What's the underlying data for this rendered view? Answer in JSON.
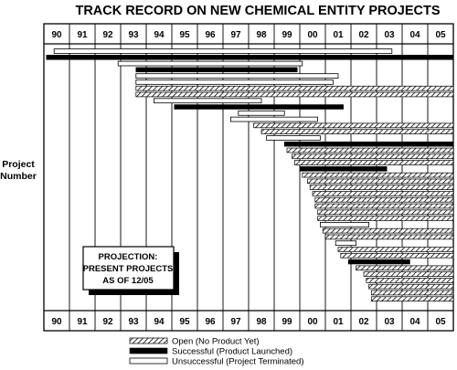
{
  "chart_data": {
    "type": "bar",
    "orientation": "horizontal",
    "title": "TRACK RECORD ON NEW CHEMICAL ENTITY PROJECTS",
    "ylabel": "Project Number",
    "x_ticks": [
      "90",
      "91",
      "92",
      "93",
      "94",
      "95",
      "96",
      "97",
      "98",
      "99",
      "00",
      "01",
      "02",
      "03",
      "04",
      "05"
    ],
    "x_range": [
      1990,
      2006
    ],
    "grid": true,
    "annotation": [
      "PROJECTION:",
      "PRESENT PROJECTS",
      "AS OF 12/05"
    ],
    "legend_position": "bottom",
    "legend": [
      {
        "status": "open",
        "label": "Open (No Product Yet)"
      },
      {
        "status": "successful",
        "label": "Successful (Product Launched)"
      },
      {
        "status": "unsuccessful",
        "label": "Unsuccessful (Project Terminated)"
      }
    ],
    "colors": {
      "open_hatch": "#000000",
      "successful": "#000000",
      "unsuccessful_fill": "#ffffff",
      "grid": "#000000"
    },
    "series": [
      {
        "status": "unsuccessful",
        "start": 1990.4,
        "end": 2003.6
      },
      {
        "status": "successful",
        "start": 1990.1,
        "end": 2006.0
      },
      {
        "status": "unsuccessful",
        "start": 1992.9,
        "end": 2000.1
      },
      {
        "status": "successful",
        "start": 1993.6,
        "end": 1999.9
      },
      {
        "status": "unsuccessful",
        "start": 1993.6,
        "end": 2001.5
      },
      {
        "status": "unsuccessful",
        "start": 1993.6,
        "end": 2001.3
      },
      {
        "status": "open",
        "start": 1993.6,
        "end": 2006.0
      },
      {
        "status": "open",
        "start": 1993.6,
        "end": 2006.0
      },
      {
        "status": "unsuccessful",
        "start": 1994.3,
        "end": 1998.5
      },
      {
        "status": "successful",
        "start": 1995.1,
        "end": 2001.7
      },
      {
        "status": "unsuccessful",
        "start": 1997.6,
        "end": 1999.4
      },
      {
        "status": "unsuccessful",
        "start": 1997.3,
        "end": 2000.7
      },
      {
        "status": "open",
        "start": 1998.2,
        "end": 2006.0
      },
      {
        "status": "open",
        "start": 1998.5,
        "end": 2006.0
      },
      {
        "status": "unsuccessful",
        "start": 1998.7,
        "end": 2000.8
      },
      {
        "status": "successful",
        "start": 1999.4,
        "end": 2006.0
      },
      {
        "status": "open",
        "start": 1999.5,
        "end": 2006.0
      },
      {
        "status": "open",
        "start": 1999.7,
        "end": 2006.0
      },
      {
        "status": "open",
        "start": 1999.8,
        "end": 2006.0
      },
      {
        "status": "successful",
        "start": 2000.0,
        "end": 2003.4
      },
      {
        "status": "open",
        "start": 2000.1,
        "end": 2006.0
      },
      {
        "status": "open",
        "start": 2000.3,
        "end": 2006.0
      },
      {
        "status": "open",
        "start": 2000.4,
        "end": 2006.0
      },
      {
        "status": "open",
        "start": 2000.5,
        "end": 2006.0
      },
      {
        "status": "open",
        "start": 2000.6,
        "end": 2006.0
      },
      {
        "status": "open",
        "start": 2000.6,
        "end": 2006.0
      },
      {
        "status": "open",
        "start": 2000.7,
        "end": 2006.0
      },
      {
        "status": "open",
        "start": 2000.7,
        "end": 2006.0
      },
      {
        "status": "unsuccessful",
        "start": 2000.8,
        "end": 2002.7
      },
      {
        "status": "open",
        "start": 2000.9,
        "end": 2006.0
      },
      {
        "status": "open",
        "start": 2001.0,
        "end": 2006.0
      },
      {
        "status": "unsuccessful",
        "start": 2001.4,
        "end": 2002.2
      },
      {
        "status": "open",
        "start": 2001.5,
        "end": 2006.0
      },
      {
        "status": "open",
        "start": 2001.6,
        "end": 2006.0
      },
      {
        "status": "successful",
        "start": 2001.9,
        "end": 2004.3
      },
      {
        "status": "open",
        "start": 2002.2,
        "end": 2006.0
      },
      {
        "status": "open",
        "start": 2002.5,
        "end": 2006.0
      },
      {
        "status": "open",
        "start": 2002.6,
        "end": 2006.0
      },
      {
        "status": "open",
        "start": 2002.7,
        "end": 2006.0
      },
      {
        "status": "open",
        "start": 2002.8,
        "end": 2006.0
      },
      {
        "status": "open",
        "start": 2002.8,
        "end": 2006.0
      }
    ]
  }
}
